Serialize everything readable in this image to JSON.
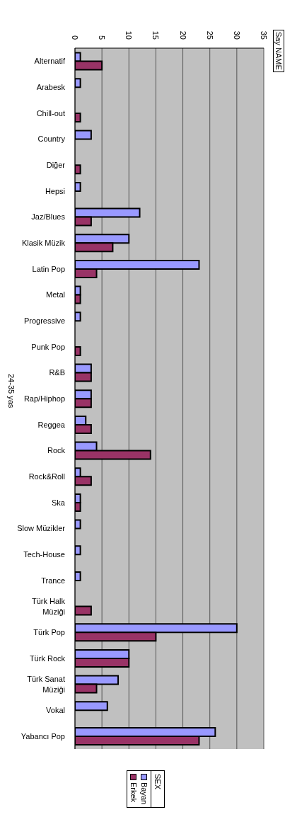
{
  "chart_data": {
    "type": "bar",
    "orientation": "horizontal",
    "title": "Say NAME",
    "ylabel": "24-35 yas",
    "legend_title": "SEX",
    "legend": "bottom",
    "grid": "x",
    "categories": [
      "Alternatif",
      "Arabesk",
      "Chill-out",
      "Country",
      "Diğer",
      "Hepsi",
      "Jaz/Blues",
      "Klasik Müzik",
      "Latin Pop",
      "Metal",
      "Progressive",
      "Punk Pop",
      "R&B",
      "Rap/Hiphop",
      "Reggea",
      "Rock",
      "Rock&Roll",
      "Ska",
      "Slow Müzikler",
      "Tech-House",
      "Trance",
      "Türk Halk Müziği",
      "Türk Pop",
      "Türk Rock",
      "Türk Sanat Müziği",
      "Vokal",
      "Yabancı Pop"
    ],
    "series": [
      {
        "name": "Bayan",
        "color": "#9999ff",
        "values": [
          1,
          1,
          null,
          3,
          null,
          1,
          12,
          10,
          23,
          1,
          1,
          null,
          3,
          3,
          2,
          4,
          1,
          1,
          1,
          1,
          1,
          null,
          30,
          10,
          8,
          6,
          26
        ]
      },
      {
        "name": "Erkek",
        "color": "#993366",
        "values": [
          5,
          null,
          1,
          null,
          1,
          null,
          3,
          7,
          4,
          1,
          null,
          1,
          3,
          3,
          3,
          14,
          3,
          1,
          null,
          null,
          null,
          3,
          15,
          10,
          4,
          null,
          23
        ]
      }
    ],
    "xlim": [
      0,
      35
    ],
    "xticks": [
      0,
      5,
      10,
      15,
      20,
      25,
      30,
      35
    ]
  }
}
